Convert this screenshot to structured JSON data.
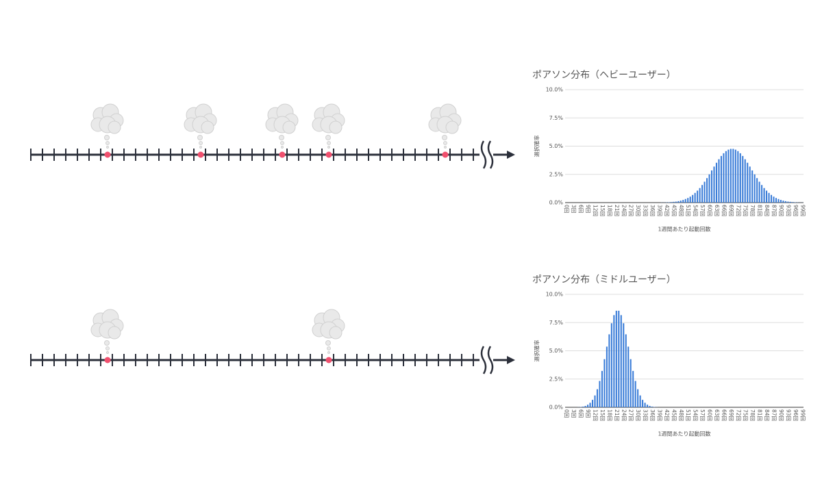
{
  "chart_data": [
    {
      "type": "bar",
      "title": "ポアソン分布（ヘビーユーザー）",
      "x_label": "1週間あたり起動回数",
      "y_label": "選択確率",
      "color": "#3b7dd8",
      "grid": true,
      "categories": [
        "0回",
        null,
        null,
        "3回",
        null,
        null,
        "6回",
        null,
        null,
        "9回",
        null,
        null,
        "12回",
        null,
        null,
        "15回",
        null,
        null,
        "18回",
        null,
        null,
        "21回",
        null,
        null,
        "24回",
        null,
        null,
        "27回",
        null,
        null,
        "30回",
        null,
        null,
        "33回",
        null,
        null,
        "36回",
        null,
        null,
        "39回",
        null,
        null,
        "42回",
        null,
        null,
        "45回",
        null,
        null,
        "48回",
        null,
        null,
        "51回",
        null,
        null,
        "54回",
        null,
        null,
        "57回",
        null,
        null,
        "60回",
        null,
        null,
        "63回",
        null,
        null,
        "66回",
        null,
        null,
        "69回",
        null,
        null,
        "72回",
        null,
        null,
        "75回",
        null,
        null,
        "78回",
        null,
        null,
        "81回",
        null,
        null,
        "84回",
        null,
        null,
        "87回",
        null,
        null,
        "90回",
        null,
        null,
        "93回",
        null,
        null,
        "96回",
        null,
        null,
        "99回"
      ],
      "values": [
        0,
        0,
        0,
        0,
        0,
        0,
        0,
        0,
        0,
        0,
        0,
        0,
        0,
        0,
        0,
        0,
        0,
        0,
        0,
        0,
        0,
        0,
        0,
        0,
        0,
        0,
        0,
        0,
        0,
        0,
        0,
        0,
        0,
        0,
        0,
        0,
        0,
        0,
        0,
        0,
        0.01,
        0.01,
        0.02,
        0.03,
        0.05,
        0.07,
        0.09,
        0.13,
        0.18,
        0.24,
        0.32,
        0.41,
        0.53,
        0.68,
        0.86,
        1.06,
        1.29,
        1.56,
        1.85,
        2.17,
        2.5,
        2.85,
        3.19,
        3.53,
        3.84,
        4.13,
        4.37,
        4.56,
        4.69,
        4.76,
        4.76,
        4.69,
        4.56,
        4.37,
        4.13,
        3.84,
        3.53,
        3.19,
        2.85,
        2.5,
        2.17,
        1.85,
        1.56,
        1.29,
        1.06,
        0.86,
        0.68,
        0.53,
        0.41,
        0.32,
        0.24,
        0.18,
        0.13,
        0.09,
        0.07,
        0.05,
        0.03,
        0.02,
        0.01,
        0.01
      ],
      "ylim": [
        0,
        10
      ],
      "yticks": [
        {
          "value": 0,
          "label": "0.0%"
        },
        {
          "value": 2.5,
          "label": "2.5%"
        },
        {
          "value": 5,
          "label": "5.0%"
        },
        {
          "value": 7.5,
          "label": "7.5%"
        },
        {
          "value": 10,
          "label": "10.0%"
        }
      ]
    },
    {
      "type": "bar",
      "title": "ポアソン分布（ミドルユーザー）",
      "x_label": "1週間あたり起動回数",
      "y_label": "選択確率",
      "color": "#3b7dd8",
      "grid": true,
      "categories": [
        "0回",
        null,
        null,
        "3回",
        null,
        null,
        "6回",
        null,
        null,
        "9回",
        null,
        null,
        "12回",
        null,
        null,
        "15回",
        null,
        null,
        "18回",
        null,
        null,
        "21回",
        null,
        null,
        "24回",
        null,
        null,
        "27回",
        null,
        null,
        "30回",
        null,
        null,
        "33回",
        null,
        null,
        "36回",
        null,
        null,
        "39回",
        null,
        null,
        "42回",
        null,
        null,
        "45回",
        null,
        null,
        "48回",
        null,
        null,
        "51回",
        null,
        null,
        "54回",
        null,
        null,
        "57回",
        null,
        null,
        "60回",
        null,
        null,
        "63回",
        null,
        null,
        "66回",
        null,
        null,
        "69回",
        null,
        null,
        "72回",
        null,
        null,
        "75回",
        null,
        null,
        "78回",
        null,
        null,
        "81回",
        null,
        null,
        "84回",
        null,
        null,
        "87回",
        null,
        null,
        "90回",
        null,
        null,
        "93回",
        null,
        null,
        "96回",
        null,
        null,
        "99回"
      ],
      "values": [
        0,
        0,
        0,
        0,
        0,
        0.01,
        0.03,
        0.06,
        0.12,
        0.23,
        0.4,
        0.66,
        1.05,
        1.6,
        2.33,
        3.22,
        4.26,
        5.37,
        6.46,
        7.44,
        8.16,
        8.55,
        8.55,
        8.16,
        7.44,
        6.46,
        5.37,
        4.26,
        3.22,
        2.33,
        1.6,
        1.05,
        0.66,
        0.4,
        0.23,
        0.12,
        0.06,
        0.03,
        0.01,
        0,
        0,
        0,
        0,
        0,
        0,
        0,
        0,
        0,
        0,
        0,
        0,
        0,
        0,
        0,
        0,
        0,
        0,
        0,
        0,
        0,
        0,
        0,
        0,
        0,
        0,
        0,
        0,
        0,
        0,
        0,
        0,
        0,
        0,
        0,
        0,
        0,
        0,
        0,
        0,
        0,
        0,
        0,
        0,
        0,
        0,
        0,
        0,
        0,
        0,
        0,
        0,
        0,
        0,
        0,
        0,
        0,
        0,
        0,
        0,
        0
      ],
      "ylim": [
        0,
        10
      ],
      "yticks": [
        {
          "value": 0,
          "label": "0.0%"
        },
        {
          "value": 2.5,
          "label": "2.5%"
        },
        {
          "value": 5,
          "label": "5.0%"
        },
        {
          "value": 7.5,
          "label": "7.5%"
        },
        {
          "value": 10,
          "label": "10.0%"
        }
      ]
    }
  ]
}
